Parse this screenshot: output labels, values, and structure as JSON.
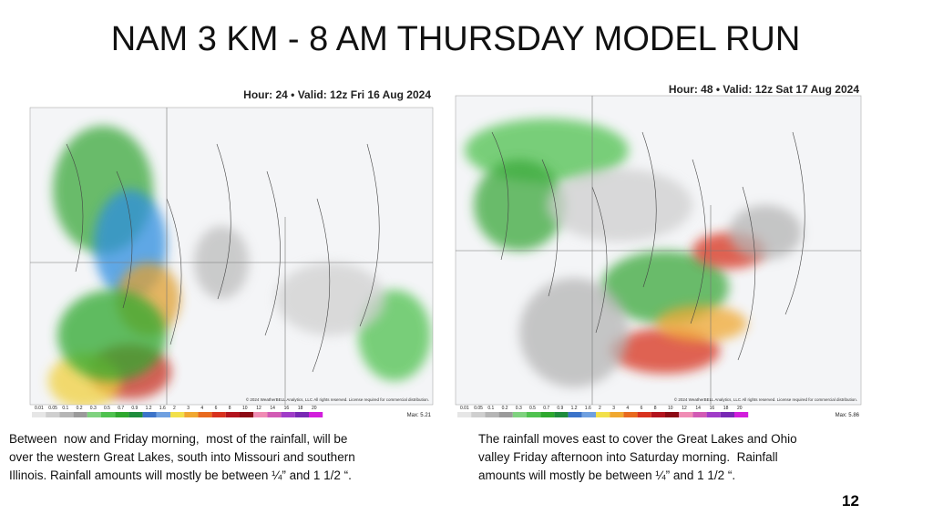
{
  "title": "NAM 3 KM - 8 AM THURSDAY MODEL RUN",
  "panels": [
    {
      "header": "Hour: 24 • Valid: 12z Fri 16 Aug 2024",
      "copyright": "© 2024 WeatherBELL Analytics, LLC All rights reserved. License required for commercial distribution.",
      "max": "Max: 5.21",
      "caption": [
        "Between  now and Friday morning,  most of the rainfall, will be",
        "over the western Great Lakes, south into Missouri and southern",
        "Illinois. Rainfall amounts will mostly be between ¼” and 1 1/2 “."
      ]
    },
    {
      "header": "Hour: 48 • Valid: 12z Sat 17 Aug 2024",
      "copyright": "© 2024 WeatherBELL Analytics, LLC All rights reserved. License required for commercial distribution.",
      "max": "Max: 5.86",
      "caption": [
        "The rainfall moves east to cover the Great Lakes and Ohio",
        "valley Friday afternoon into Saturday morning.  Rainfall",
        "amounts will mostly be between ¼” and 1 1/2 “."
      ]
    }
  ],
  "scale": [
    "0.01",
    "0.05",
    "0.1",
    "0.2",
    "0.3",
    "0.5",
    "0.7",
    "0.9",
    "1.2",
    "1.6",
    "2",
    "3",
    "4",
    "6",
    "8",
    "10",
    "12",
    "14",
    "16",
    "18",
    "20"
  ],
  "page_number": "12"
}
